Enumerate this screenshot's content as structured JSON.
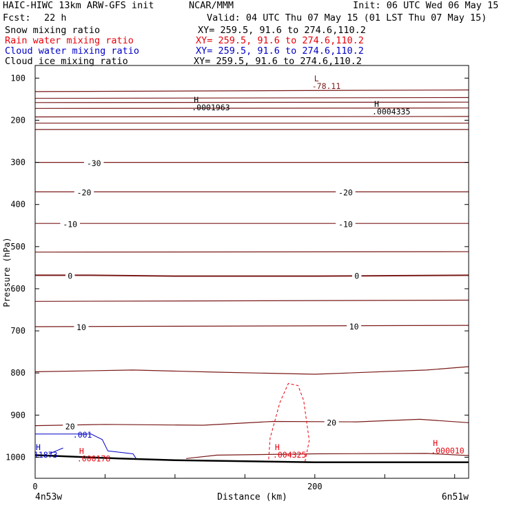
{
  "header": {
    "model": "HAIC-HIWC 13km ARW-GFS init",
    "org": "NCAR/MMM",
    "init": "Init: 06 UTC Wed 06 May 15",
    "fcst_label": "Fcst:",
    "fcst_value": "22 h",
    "valid": "Valid: 04 UTC Thu 07 May 15 (01 LST Thu 07 May 15)",
    "fields": [
      {
        "name": "Snow mixing ratio",
        "xy": "XY= 259.5, 91.6 to 274.6,110.2",
        "color": "#000000"
      },
      {
        "name": "Rain water mixing ratio",
        "xy": "XY= 259.5, 91.6 to 274.6,110.2",
        "color": "#e8000b"
      },
      {
        "name": "Cloud water mixing ratio",
        "xy": "XY= 259.5, 91.6 to 274.6,110.2",
        "color": "#0000c8"
      },
      {
        "name": "Cloud ice mixing ratio",
        "xy": "XY= 259.5, 91.6 to 274.6,110.2",
        "color": "#000000"
      }
    ]
  },
  "chart_data": {
    "type": "line",
    "title": "",
    "xlabel": "Distance (km)",
    "ylabel": "Pressure (hPa)",
    "xlim": [
      0,
      310
    ],
    "ylim": [
      1050,
      70
    ],
    "x_ticks": [
      0,
      200
    ],
    "y_ticks": [
      100,
      200,
      300,
      400,
      500,
      600,
      700,
      800,
      900,
      1000
    ],
    "x_endpoint_labels": {
      "left": "4n53w",
      "right": "6n51w"
    },
    "colors": {
      "temperature": "#7a1818",
      "ground": "#000000",
      "rain": "#e8000b",
      "cloud_water": "#0000c8"
    },
    "isotherms": [
      {
        "label": "",
        "pts": [
          [
            0,
            132
          ],
          [
            310,
            128
          ]
        ]
      },
      {
        "label": "",
        "pts": [
          [
            0,
            148
          ],
          [
            310,
            146
          ]
        ]
      },
      {
        "label": "",
        "pts": [
          [
            0,
            158
          ],
          [
            310,
            157
          ]
        ]
      },
      {
        "label": "",
        "pts": [
          [
            0,
            172
          ],
          [
            310,
            171
          ]
        ]
      },
      {
        "label": "",
        "pts": [
          [
            0,
            192
          ],
          [
            310,
            191
          ]
        ]
      },
      {
        "label": "",
        "pts": [
          [
            0,
            207
          ],
          [
            310,
            207
          ]
        ]
      },
      {
        "label": "",
        "pts": [
          [
            0,
            222
          ],
          [
            310,
            222
          ]
        ]
      },
      {
        "label": "-30",
        "pts": [
          [
            0,
            300
          ],
          [
            310,
            300
          ]
        ]
      },
      {
        "label": "-20",
        "pts": [
          [
            0,
            370
          ],
          [
            310,
            370
          ]
        ]
      },
      {
        "label": "-10",
        "pts": [
          [
            0,
            445
          ],
          [
            310,
            445
          ]
        ]
      },
      {
        "label": "",
        "pts": [
          [
            0,
            513
          ],
          [
            310,
            512
          ]
        ]
      },
      {
        "label": "0",
        "pts": [
          [
            0,
            568
          ],
          [
            40,
            568
          ],
          [
            100,
            570
          ],
          [
            200,
            570
          ],
          [
            310,
            568
          ]
        ]
      },
      {
        "label": "",
        "pts": [
          [
            0,
            630
          ],
          [
            310,
            627
          ]
        ]
      },
      {
        "label": "10",
        "pts": [
          [
            0,
            690
          ],
          [
            310,
            687
          ]
        ]
      },
      {
        "label": "",
        "pts": [
          [
            0,
            797
          ],
          [
            70,
            793
          ],
          [
            130,
            798
          ],
          [
            200,
            803
          ],
          [
            280,
            793
          ],
          [
            310,
            785
          ]
        ]
      },
      {
        "label": "20",
        "pts": [
          [
            0,
            925
          ],
          [
            50,
            922
          ],
          [
            120,
            924
          ],
          [
            170,
            915
          ],
          [
            230,
            916
          ],
          [
            275,
            910
          ],
          [
            310,
            918
          ]
        ]
      },
      {
        "label": "",
        "pts": [
          [
            108,
            1003
          ],
          [
            130,
            995
          ],
          [
            200,
            992
          ],
          [
            280,
            991
          ],
          [
            310,
            996
          ]
        ]
      }
    ],
    "isotherm_labels": [
      {
        "text": "-30",
        "x": 42,
        "p": 302
      },
      {
        "text": "-20",
        "x": 35,
        "p": 372
      },
      {
        "text": "-20",
        "x": 222,
        "p": 372
      },
      {
        "text": "-10",
        "x": 25,
        "p": 447
      },
      {
        "text": "-10",
        "x": 222,
        "p": 447
      },
      {
        "text": "0",
        "x": 25,
        "p": 570
      },
      {
        "text": "0",
        "x": 230,
        "p": 570
      },
      {
        "text": "10",
        "x": 33,
        "p": 692
      },
      {
        "text": "10",
        "x": 228,
        "p": 690
      },
      {
        "text": "20",
        "x": 25,
        "p": 927
      },
      {
        "text": "20",
        "x": 212,
        "p": 918
      }
    ],
    "ground": [
      [
        0,
        995
      ],
      [
        60,
        1003
      ],
      [
        100,
        1007
      ],
      [
        200,
        1012
      ],
      [
        310,
        1012
      ]
    ],
    "rain_contour": [
      [
        167,
        1005
      ],
      [
        168,
        955
      ],
      [
        175,
        870
      ],
      [
        181,
        825
      ],
      [
        188,
        830
      ],
      [
        192,
        865
      ],
      [
        196,
        960
      ],
      [
        193,
        1010
      ]
    ],
    "cloud_water_contour": [
      [
        0,
        945
      ],
      [
        25,
        945
      ],
      [
        40,
        945
      ],
      [
        48,
        958
      ],
      [
        52,
        985
      ],
      [
        60,
        988
      ],
      [
        70,
        992
      ],
      [
        72,
        1002
      ]
    ],
    "cloud_water_tick": [
      [
        10,
        992
      ],
      [
        15,
        985
      ],
      [
        20,
        978
      ]
    ],
    "extrema": [
      {
        "type": "L",
        "value": "-78.11",
        "x": 198,
        "p": 108,
        "color": "#7a1818"
      },
      {
        "type": "H",
        "value": ".0001963",
        "x": 112,
        "p": 158,
        "color": "#000000"
      },
      {
        "type": "H",
        "value": ".0004335",
        "x": 241,
        "p": 168,
        "color": "#000000"
      },
      {
        "type": "H",
        "value": ".000178",
        "x": 30,
        "p": 992,
        "color": "#e8000b"
      },
      {
        "type": "H",
        "value": ".004325",
        "x": 170,
        "p": 983,
        "color": "#e8000b"
      },
      {
        "type": "H",
        "value": ".000010",
        "x": 283,
        "p": 973,
        "color": "#e8000b"
      },
      {
        "type": "H",
        "value": "11873",
        "x": -1,
        "p": 983,
        "color": "#0000c8"
      }
    ],
    "contour_labels": [
      {
        "text": ".001",
        "x": 27,
        "p": 947,
        "color": "#0000c8"
      }
    ]
  }
}
